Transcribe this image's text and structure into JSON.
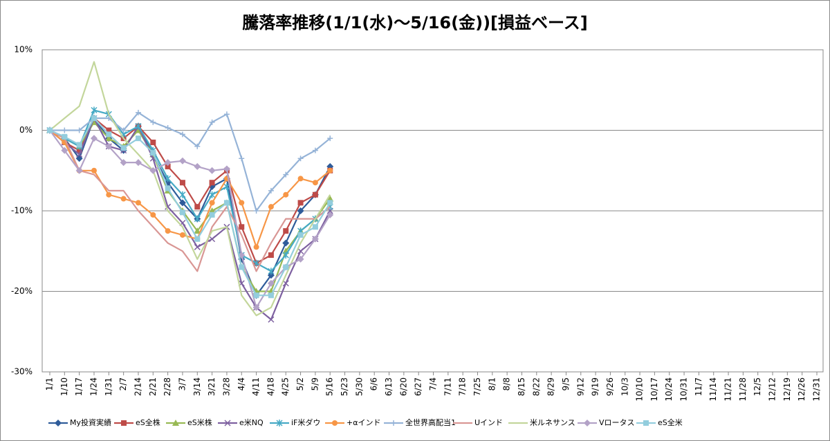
{
  "chart_data": {
    "type": "line",
    "title": "騰落率推移(1/1(水)～5/16(金))[損益ベース]",
    "categories": [
      "1/1",
      "1/10",
      "1/17",
      "1/24",
      "1/31",
      "2/7",
      "2/14",
      "2/21",
      "2/28",
      "3/7",
      "3/14",
      "3/21",
      "3/28",
      "4/4",
      "4/11",
      "4/18",
      "4/25",
      "5/2",
      "5/9",
      "5/16",
      "5/23",
      "5/30",
      "6/6",
      "6/13",
      "6/20",
      "6/27",
      "7/4",
      "7/11",
      "7/18",
      "7/25",
      "8/1",
      "8/8",
      "8/15",
      "8/22",
      "8/29",
      "9/5",
      "9/12",
      "9/19",
      "9/26",
      "10/3",
      "10/10",
      "10/17",
      "10/24",
      "10/31",
      "11/7",
      "11/14",
      "11/21",
      "11/28",
      "12/5",
      "12/12",
      "12/19",
      "12/26",
      "12/31"
    ],
    "ylim": [
      -30,
      10
    ],
    "yticks": [
      {
        "value": -30,
        "label": "-30%"
      },
      {
        "value": -20,
        "label": "-20%"
      },
      {
        "value": -10,
        "label": "-10%"
      },
      {
        "value": 0,
        "label": "0%"
      },
      {
        "value": 10,
        "label": "10%"
      }
    ],
    "grid": true,
    "legend": "bottom",
    "series": [
      {
        "name": "My投資実績",
        "color": "#2f5c9a",
        "marker": "diamond",
        "values": [
          0,
          -1,
          -3.5,
          1.5,
          -1,
          -2.5,
          0.5,
          -3,
          -6.5,
          -9,
          -11,
          -7,
          -6,
          -16,
          -20.5,
          -18,
          -14,
          -10,
          -8,
          -4.5,
          null,
          null,
          null,
          null,
          null,
          null,
          null,
          null,
          null,
          null,
          null,
          null,
          null,
          null,
          null,
          null,
          null,
          null,
          null,
          null,
          null,
          null,
          null,
          null,
          null,
          null,
          null,
          null,
          null,
          null,
          null,
          null,
          null
        ]
      },
      {
        "name": "eS全株",
        "color": "#be4b48",
        "marker": "square",
        "values": [
          0,
          -1.5,
          -2.5,
          1.5,
          0,
          -1,
          0.5,
          -1.5,
          -4.5,
          -6.5,
          -9.5,
          -6.5,
          -5,
          -12,
          -16.5,
          -15.5,
          -12.5,
          -9,
          -8,
          -5,
          null,
          null,
          null,
          null,
          null,
          null,
          null,
          null,
          null,
          null,
          null,
          null,
          null,
          null,
          null,
          null,
          null,
          null,
          null,
          null,
          null,
          null,
          null,
          null,
          null,
          null,
          null,
          null,
          null,
          null,
          null,
          null,
          null
        ]
      },
      {
        "name": "eS米株",
        "color": "#98b954",
        "marker": "triangle",
        "values": [
          0,
          -1,
          -2,
          1,
          -1,
          -2,
          0,
          -3,
          -7.5,
          -10,
          -12.5,
          -10,
          -9,
          -17,
          -20,
          -20,
          -15,
          -12.5,
          -11,
          -8.5,
          null,
          null,
          null,
          null,
          null,
          null,
          null,
          null,
          null,
          null,
          null,
          null,
          null,
          null,
          null,
          null,
          null,
          null,
          null,
          null,
          null,
          null,
          null,
          null,
          null,
          null,
          null,
          null,
          null,
          null,
          null,
          null,
          null
        ]
      },
      {
        "name": "e米NQ",
        "color": "#7d60a0",
        "marker": "x",
        "values": [
          0,
          -1.5,
          -3,
          1.5,
          -2,
          -2.5,
          0.5,
          -3.5,
          -9.5,
          -11.5,
          -14.5,
          -13.5,
          -12,
          -19,
          -22,
          -23.5,
          -19,
          -15,
          -13.5,
          -10,
          null,
          null,
          null,
          null,
          null,
          null,
          null,
          null,
          null,
          null,
          null,
          null,
          null,
          null,
          null,
          null,
          null,
          null,
          null,
          null,
          null,
          null,
          null,
          null,
          null,
          null,
          null,
          null,
          null,
          null,
          null,
          null,
          null
        ]
      },
      {
        "name": "iF米ダウ",
        "color": "#46aac5",
        "marker": "star",
        "values": [
          0,
          -1,
          -2,
          2.5,
          2,
          -0.5,
          0.5,
          -2.5,
          -6,
          -8,
          -11,
          -8,
          -7,
          -15.5,
          -16.5,
          -17.5,
          -15.5,
          -12.5,
          -11,
          -9.5,
          null,
          null,
          null,
          null,
          null,
          null,
          null,
          null,
          null,
          null,
          null,
          null,
          null,
          null,
          null,
          null,
          null,
          null,
          null,
          null,
          null,
          null,
          null,
          null,
          null,
          null,
          null,
          null,
          null,
          null,
          null,
          null,
          null
        ]
      },
      {
        "name": "+αインド",
        "color": "#f79646",
        "marker": "circle",
        "values": [
          0,
          -1.5,
          -5,
          -5,
          -8,
          -8.5,
          -9,
          -10.5,
          -12.5,
          -13,
          -13.5,
          -9,
          -6,
          -9,
          -14.5,
          -9.5,
          -8,
          -6,
          -6.5,
          -5,
          null,
          null,
          null,
          null,
          null,
          null,
          null,
          null,
          null,
          null,
          null,
          null,
          null,
          null,
          null,
          null,
          null,
          null,
          null,
          null,
          null,
          null,
          null,
          null,
          null,
          null,
          null,
          null,
          null,
          null,
          null,
          null,
          null
        ]
      },
      {
        "name": "全世界高配当1",
        "color": "#95b3d7",
        "marker": "plus",
        "values": [
          0,
          0,
          0,
          1.5,
          1.5,
          0,
          2.2,
          1,
          0.3,
          -0.5,
          -2,
          1,
          2,
          -3.5,
          -10,
          -7.5,
          -5.5,
          -3.5,
          -2.5,
          -1,
          null,
          null,
          null,
          null,
          null,
          null,
          null,
          null,
          null,
          null,
          null,
          null,
          null,
          null,
          null,
          null,
          null,
          null,
          null,
          null,
          null,
          null,
          null,
          null,
          null,
          null,
          null,
          null,
          null,
          null,
          null,
          null,
          null
        ]
      },
      {
        "name": "Uインド",
        "color": "#d99694",
        "marker": "none",
        "values": [
          0,
          -1,
          -5,
          -5.5,
          -7.5,
          -7.5,
          -10,
          -12,
          -14,
          -15,
          -17.5,
          -12,
          -9.5,
          -13,
          -17.5,
          -14,
          -11,
          -11,
          -11,
          -9.5,
          null,
          null,
          null,
          null,
          null,
          null,
          null,
          null,
          null,
          null,
          null,
          null,
          null,
          null,
          null,
          null,
          null,
          null,
          null,
          null,
          null,
          null,
          null,
          null,
          null,
          null,
          null,
          null,
          null,
          null,
          null,
          null,
          null
        ]
      },
      {
        "name": "米ルネサンス",
        "color": "#c3d69b",
        "marker": "none",
        "values": [
          0,
          1.5,
          3,
          8.5,
          2,
          -1,
          -3,
          -5,
          -10,
          -12,
          -16,
          -12.5,
          -12,
          -20.5,
          -23,
          -22,
          -18,
          -14,
          -11,
          -8,
          null,
          null,
          null,
          null,
          null,
          null,
          null,
          null,
          null,
          null,
          null,
          null,
          null,
          null,
          null,
          null,
          null,
          null,
          null,
          null,
          null,
          null,
          null,
          null,
          null,
          null,
          null,
          null,
          null,
          null,
          null,
          null,
          null
        ]
      },
      {
        "name": "Vロータス",
        "color": "#b3a2c7",
        "marker": "diamond",
        "values": [
          0,
          -2.5,
          -5,
          -1,
          -2,
          -4,
          -4,
          -5,
          -4,
          -3.8,
          -4.5,
          -5,
          -4.8,
          -15.5,
          -22,
          -19,
          -17,
          -16,
          -13.5,
          -10.5,
          null,
          null,
          null,
          null,
          null,
          null,
          null,
          null,
          null,
          null,
          null,
          null,
          null,
          null,
          null,
          null,
          null,
          null,
          null,
          null,
          null,
          null,
          null,
          null,
          null,
          null,
          null,
          null,
          null,
          null,
          null,
          null,
          null
        ]
      },
      {
        "name": "eS全米",
        "color": "#93cddd",
        "marker": "square",
        "values": [
          0,
          -0.8,
          -1.8,
          1.5,
          -0.5,
          -2.2,
          -1,
          -2.8,
          -7.2,
          -10.2,
          -13.5,
          -10.5,
          -9,
          -17,
          -20.5,
          -20.5,
          -17,
          -13,
          -12,
          -9,
          null,
          null,
          null,
          null,
          null,
          null,
          null,
          null,
          null,
          null,
          null,
          null,
          null,
          null,
          null,
          null,
          null,
          null,
          null,
          null,
          null,
          null,
          null,
          null,
          null,
          null,
          null,
          null,
          null,
          null,
          null,
          null,
          null
        ]
      }
    ]
  }
}
